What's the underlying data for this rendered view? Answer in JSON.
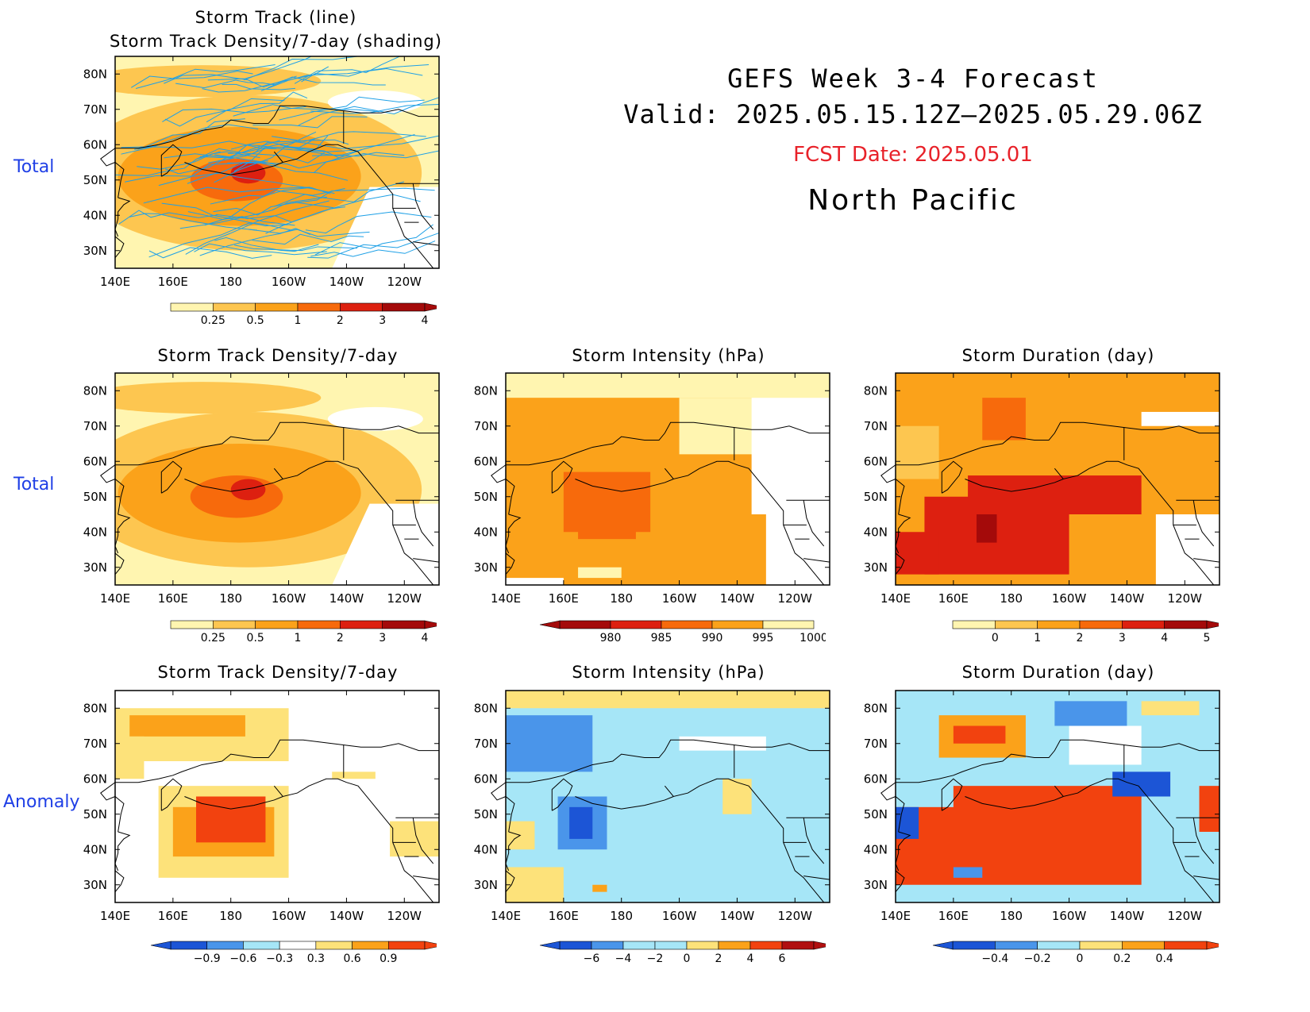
{
  "header": {
    "title": "GEFS Week 3-4 Forecast",
    "valid": "Valid: 2025.05.15.12Z–2025.05.29.06Z",
    "fcst_date": "FCST Date: 2025.05.01",
    "region": "North Pacific"
  },
  "row_labels": [
    "Total",
    "Total",
    "Anomaly"
  ],
  "axes": {
    "lon_ticks": [
      "140E",
      "160E",
      "180",
      "160W",
      "140W",
      "120W"
    ],
    "lat_ticks": [
      "80N",
      "70N",
      "60N",
      "50N",
      "40N",
      "30N"
    ]
  },
  "panels": {
    "track": {
      "title1": "Storm Track (line)",
      "title2": "Storm Track Density/7-day (shading)"
    },
    "density_total": {
      "title": "Storm Track Density/7-day"
    },
    "intensity_total": {
      "title": "Storm Intensity (hPa)"
    },
    "duration_total": {
      "title": "Storm Duration (day)"
    },
    "density_anom": {
      "title": "Storm Track Density/7-day"
    },
    "intensity_anom": {
      "title": "Storm Intensity (hPa)"
    },
    "duration_anom": {
      "title": "Storm Duration (day)"
    }
  },
  "colorbars": {
    "density": {
      "labels": [
        "0.25",
        "0.5",
        "1",
        "2",
        "3",
        "4"
      ],
      "colors": [
        "#fff5b0",
        "#fdc650",
        "#fba21a",
        "#f76a0c",
        "#dd2010",
        "#a40a0a"
      ]
    },
    "intensity": {
      "labels": [
        "980",
        "985",
        "990",
        "995",
        "1000"
      ],
      "colors": [
        "#a40a0a",
        "#dd2010",
        "#f76a0c",
        "#fba21a",
        "#fff5b0"
      ]
    },
    "duration": {
      "labels": [
        "0",
        "1",
        "2",
        "3",
        "4",
        "5"
      ],
      "colors": [
        "#fff5b0",
        "#fdc650",
        "#fba21a",
        "#f76a0c",
        "#dd2010",
        "#a40a0a"
      ]
    },
    "density_anom": {
      "labels": [
        "−0.9",
        "−0.6",
        "−0.3",
        "0.3",
        "0.6",
        "0.9"
      ],
      "colors": [
        "#1c55d6",
        "#4a95ea",
        "#a6e6f7",
        "#ffffff",
        "#fde27a",
        "#fba21a",
        "#f2420f"
      ]
    },
    "intensity_anom": {
      "labels": [
        "−6",
        "−4",
        "−2",
        "0",
        "2",
        "4",
        "6"
      ],
      "colors": [
        "#1c55d6",
        "#4a95ea",
        "#a6e6f7",
        "#a6e6f7",
        "#fde27a",
        "#fba21a",
        "#f2420f",
        "#b01010"
      ]
    },
    "duration_anom": {
      "labels": [
        "−0.4",
        "−0.2",
        "0",
        "0.2",
        "0.4"
      ],
      "colors": [
        "#1c55d6",
        "#4a95ea",
        "#a6e6f7",
        "#fde27a",
        "#fba21a",
        "#f2420f"
      ]
    }
  },
  "colors": {
    "track_line": "#1ea0e6",
    "row_label": "#1f3fe6",
    "fcst_date": "#e8222a"
  }
}
